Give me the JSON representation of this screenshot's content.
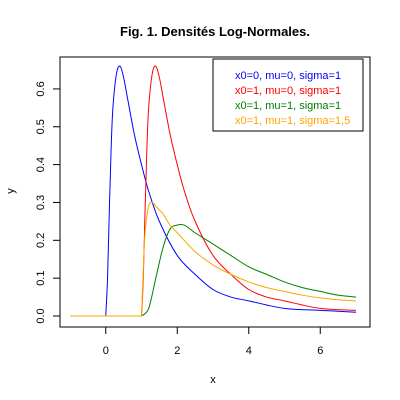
{
  "chart_data": {
    "type": "line",
    "title": "Fig. 1. Densités Log-Normales.",
    "xlabel": "x",
    "ylabel": "y",
    "xlim": [
      -1,
      7
    ],
    "ylim": [
      0,
      0.65
    ],
    "x_ticks": [
      0,
      2,
      4,
      6
    ],
    "y_ticks": [
      0.0,
      0.1,
      0.2,
      0.3,
      0.4,
      0.5,
      0.6
    ],
    "x_tick_labels": [
      "0",
      "2",
      "4",
      "6"
    ],
    "y_tick_labels": [
      "0.0",
      "0.1",
      "0.2",
      "0.3",
      "0.4",
      "0.5",
      "0.6"
    ],
    "grid": false,
    "legend_position": "top-right",
    "series": [
      {
        "name": "x0=0, mu=0, sigma=1",
        "color": "#0000ff",
        "x": [
          -1.0,
          0.0,
          0.05,
          0.1,
          0.15,
          0.2,
          0.3,
          0.4,
          0.5,
          0.6,
          0.8,
          1.0,
          1.2,
          1.5,
          2.0,
          2.5,
          3.0,
          3.5,
          4.0,
          5.0,
          6.0,
          7.0
        ],
        "y": [
          0.0,
          0.0,
          0.1,
          0.28,
          0.44,
          0.55,
          0.64,
          0.66,
          0.63,
          0.58,
          0.48,
          0.4,
          0.33,
          0.25,
          0.16,
          0.11,
          0.07,
          0.05,
          0.04,
          0.02,
          0.015,
          0.01
        ]
      },
      {
        "name": "x0=1, mu=0, sigma=1",
        "color": "#ff0000",
        "x": [
          -1.0,
          1.0,
          1.05,
          1.1,
          1.15,
          1.2,
          1.3,
          1.4,
          1.5,
          1.6,
          1.8,
          2.0,
          2.2,
          2.5,
          3.0,
          3.5,
          4.0,
          4.5,
          5.0,
          6.0,
          7.0
        ],
        "y": [
          0.0,
          0.0,
          0.1,
          0.28,
          0.44,
          0.55,
          0.64,
          0.66,
          0.63,
          0.58,
          0.48,
          0.4,
          0.33,
          0.25,
          0.16,
          0.11,
          0.07,
          0.05,
          0.04,
          0.02,
          0.015
        ]
      },
      {
        "name": "x0=1, mu=1, sigma=1",
        "color": "#008000",
        "x": [
          -1.0,
          1.0,
          1.2,
          1.4,
          1.6,
          1.8,
          2.0,
          2.2,
          2.5,
          3.0,
          3.5,
          4.0,
          4.5,
          5.0,
          5.5,
          6.0,
          6.5,
          7.0
        ],
        "y": [
          0.0,
          0.0,
          0.02,
          0.1,
          0.18,
          0.23,
          0.24,
          0.24,
          0.22,
          0.19,
          0.16,
          0.13,
          0.11,
          0.09,
          0.075,
          0.065,
          0.055,
          0.05
        ]
      },
      {
        "name": "x0=1, mu=1, sigma=1,5",
        "color": "#ffa500",
        "x": [
          -1.0,
          1.0,
          1.05,
          1.1,
          1.2,
          1.3,
          1.4,
          1.5,
          1.6,
          1.8,
          2.0,
          2.5,
          3.0,
          3.5,
          4.0,
          4.5,
          5.0,
          5.5,
          6.0,
          6.5,
          7.0
        ],
        "y": [
          0.0,
          0.0,
          0.12,
          0.22,
          0.29,
          0.3,
          0.29,
          0.28,
          0.27,
          0.24,
          0.22,
          0.17,
          0.135,
          0.11,
          0.09,
          0.075,
          0.065,
          0.055,
          0.048,
          0.043,
          0.04
        ]
      }
    ]
  }
}
